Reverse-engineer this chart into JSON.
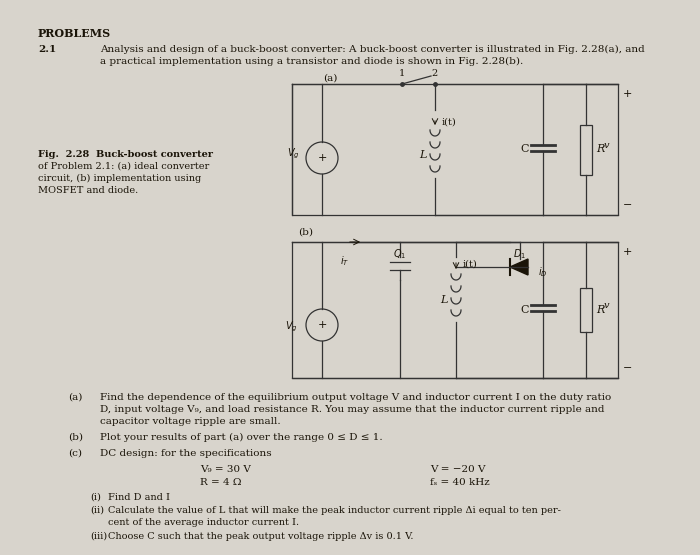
{
  "bg_color": "#d8d4cc",
  "text_color": "#1a1408",
  "title": "PROBLEMS",
  "problem_num": "2.1",
  "intro_line1": "Analysis and design of a buck-boost converter: A buck-boost converter is illustrated in Fig. 2.28(a), and",
  "intro_line2": "a practical implementation using a transistor and diode is shown in Fig. 2.28(b).",
  "fig_label_line1": "Fig.  2.28  Buck-boost converter",
  "fig_label_line2": "of Problem 2.1: (a) ideal converter",
  "fig_label_line3": "circuit, (b) implementation using",
  "fig_label_line4": "MOSFET and diode.",
  "part_a_label": "(a)",
  "part_a_line1": "Find the dependence of the equilibrium output voltage V and inductor current I on the duty ratio",
  "part_a_line2": "D, input voltage V₉, and load resistance R. You may assume that the inductor current ripple and",
  "part_a_line3": "capacitor voltage ripple are small.",
  "part_b_label": "(b)",
  "part_b_text": "Plot your results of part (a) over the range 0 ≤ D ≤ 1.",
  "part_c_label": "(c)",
  "part_c_text": "DC design: for the specifications",
  "spec1_left": "V₉ = 30 V",
  "spec1_right": "V = −20 V",
  "spec2_left": "R = 4 Ω",
  "spec2_right": "fₛ = 40 kHz",
  "sub_i_label": "(i)",
  "sub_i_text": "Find D and I",
  "sub_ii_label": "(ii)",
  "sub_ii_line1": "Calculate the value of L that will make the peak inductor current ripple Δi equal to ten per-",
  "sub_ii_line2": "cent of the average inductor current I.",
  "sub_iii_label": "(iii)",
  "sub_iii_text": "Choose C such that the peak output voltage ripple Δv is 0.1 V."
}
